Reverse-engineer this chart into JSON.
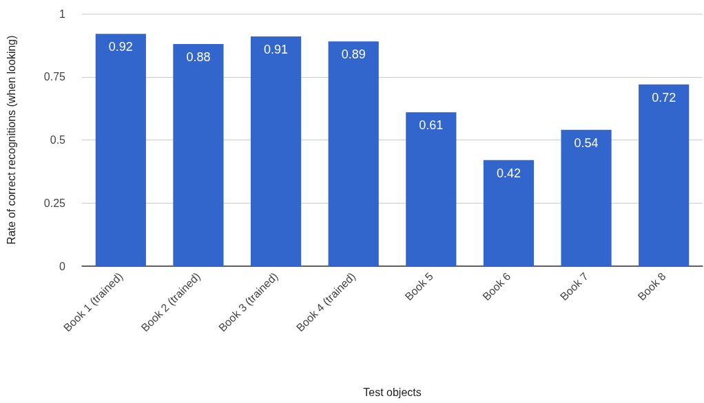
{
  "chart_data": {
    "type": "bar",
    "xlabel": "Test objects",
    "ylabel": "Rate of correct recognitions (when looking)",
    "categories": [
      "Book 1 (trained)",
      "Book 2 (trained)",
      "Book 3 (trained)",
      "Book 4 (trained)",
      "Book 5",
      "Book 6",
      "Book 7",
      "Book 8"
    ],
    "values": [
      0.92,
      0.88,
      0.91,
      0.89,
      0.61,
      0.42,
      0.54,
      0.72
    ],
    "color": "#3366cc",
    "ylim": [
      0,
      1
    ],
    "yticks": [
      0,
      0.25,
      0.5,
      0.75,
      1
    ],
    "grid": "y",
    "data_labels": true
  }
}
